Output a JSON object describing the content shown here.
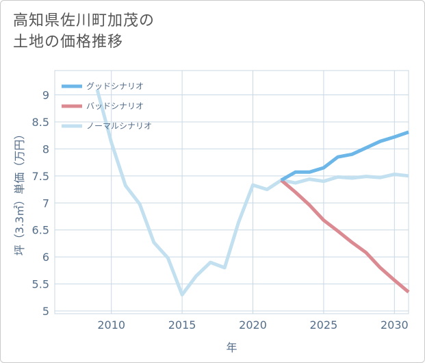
{
  "title_lines": [
    "高知県佐川町加茂の",
    "土地の価格推移"
  ],
  "chart_data": {
    "type": "line",
    "xlabel": "年",
    "ylabel": "坪（3.3㎡）単価（万円）",
    "xlim": [
      2006,
      2031
    ],
    "ylim": [
      4.95,
      9.45
    ],
    "xticks": [
      2010,
      2015,
      2020,
      2025,
      2030
    ],
    "yticks": [
      5,
      5.5,
      6,
      6.5,
      7,
      7.5,
      8,
      8.5,
      9
    ],
    "grid": true,
    "legend_position": "top-left",
    "series": [
      {
        "name": "グッドシナリオ",
        "color": "#6cb6e8",
        "x": [
          2022,
          2023,
          2024,
          2025,
          2026,
          2027,
          2028,
          2029,
          2030,
          2031
        ],
        "y": [
          7.42,
          7.57,
          7.57,
          7.65,
          7.85,
          7.9,
          8.02,
          8.14,
          8.22,
          8.31
        ]
      },
      {
        "name": "バッドシナリオ",
        "color": "#dc8a92",
        "x": [
          2022,
          2023,
          2024,
          2025,
          2026,
          2027,
          2028,
          2029,
          2030,
          2031
        ],
        "y": [
          7.42,
          7.2,
          6.96,
          6.68,
          6.48,
          6.27,
          6.08,
          5.8,
          5.57,
          5.35
        ]
      },
      {
        "name": "ノーマルシナリオ",
        "color": "#c2e0f0",
        "x": [
          2009,
          2010,
          2011,
          2012,
          2013,
          2014,
          2015,
          2016,
          2017,
          2018,
          2019,
          2020,
          2021,
          2022,
          2023,
          2024,
          2025,
          2026,
          2027,
          2028,
          2029,
          2030,
          2031
        ],
        "y": [
          9.1,
          8.12,
          7.32,
          6.98,
          6.27,
          5.98,
          5.3,
          5.65,
          5.9,
          5.8,
          6.65,
          7.33,
          7.25,
          7.42,
          7.37,
          7.44,
          7.4,
          7.48,
          7.46,
          7.49,
          7.47,
          7.53,
          7.5
        ]
      }
    ]
  }
}
